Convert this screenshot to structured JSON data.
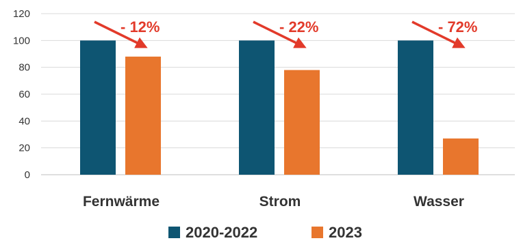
{
  "chart_data": {
    "type": "bar",
    "categories": [
      "Fernwärme",
      "Strom",
      "Wasser"
    ],
    "series": [
      {
        "name": "2020-2022",
        "values": [
          100,
          100,
          100
        ],
        "color": "#0e5572"
      },
      {
        "name": "2023",
        "values": [
          88,
          78,
          27
        ],
        "color": "#e8762d"
      }
    ],
    "ylim": [
      0,
      120
    ],
    "yticks": [
      0,
      20,
      40,
      60,
      80,
      100,
      120
    ],
    "grid": true,
    "legend": "bottom",
    "annotations": [
      "- 12%",
      "- 22%",
      "- 72%"
    ],
    "annotation_color": "#e23a2a"
  }
}
